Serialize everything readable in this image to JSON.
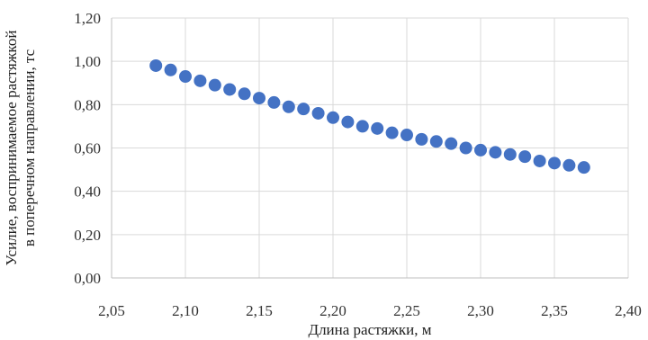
{
  "chart_data": {
    "type": "scatter",
    "title": "",
    "xlabel": "Длина растяжки, м",
    "ylabel_lines": [
      "Усилие, воспринимаемое растяжкой",
      "в поперечном направлении, тс"
    ],
    "xlim": [
      2.05,
      2.4
    ],
    "ylim": [
      0.0,
      1.2
    ],
    "x_ticks": [
      "2,05",
      "2,10",
      "2,15",
      "2,20",
      "2,25",
      "2,30",
      "2,35",
      "2,40"
    ],
    "y_ticks": [
      "0,00",
      "0,20",
      "0,40",
      "0,60",
      "0,80",
      "1,00",
      "1,20"
    ],
    "grid": true,
    "marker_color": "#4472c4",
    "series": [
      {
        "x": [
          2.08,
          2.09,
          2.1,
          2.11,
          2.12,
          2.13,
          2.14,
          2.15,
          2.16,
          2.17,
          2.18,
          2.19,
          2.2,
          2.21,
          2.22,
          2.23,
          2.24,
          2.25,
          2.26,
          2.27,
          2.28,
          2.29,
          2.3,
          2.31,
          2.32,
          2.33,
          2.34,
          2.35,
          2.36,
          2.37
        ],
        "y": [
          0.98,
          0.96,
          0.93,
          0.91,
          0.89,
          0.87,
          0.85,
          0.83,
          0.81,
          0.79,
          0.78,
          0.76,
          0.74,
          0.72,
          0.7,
          0.69,
          0.67,
          0.66,
          0.64,
          0.63,
          0.62,
          0.6,
          0.59,
          0.58,
          0.57,
          0.56,
          0.54,
          0.53,
          0.52,
          0.51
        ]
      }
    ]
  }
}
